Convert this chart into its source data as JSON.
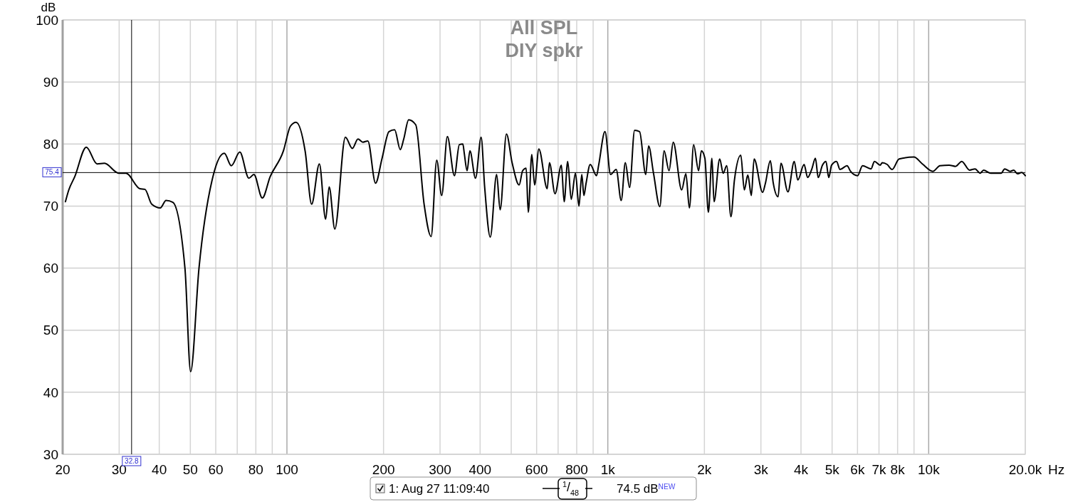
{
  "chart_data": {
    "type": "line",
    "title": "All SPL",
    "subtitle": "DIY spkr",
    "ylabel": "dB",
    "xlabel": "Hz",
    "log": "x",
    "grid": true,
    "legend": "bottom",
    "marker": "none",
    "line_style": "solid",
    "xlim": [
      20,
      20000
    ],
    "ylim": [
      30,
      100
    ],
    "xticks": [
      20,
      30,
      40,
      50,
      60,
      {
        "value": 70,
        "label": null
      },
      80,
      {
        "value": 90,
        "label": null
      },
      100,
      200,
      300,
      400,
      {
        "value": 500,
        "label": null
      },
      600,
      {
        "value": 700,
        "label": null
      },
      800,
      {
        "value": 900,
        "label": null
      },
      {
        "value": 1000,
        "label": "1k"
      },
      {
        "value": 2000,
        "label": "2k"
      },
      {
        "value": 3000,
        "label": "3k"
      },
      {
        "value": 4000,
        "label": "4k"
      },
      {
        "value": 5000,
        "label": "5k"
      },
      {
        "value": 6000,
        "label": "6k"
      },
      {
        "value": 7000,
        "label": "7k"
      },
      {
        "value": 8000,
        "label": "8k"
      },
      {
        "value": 9000,
        "label": null
      },
      {
        "value": 10000,
        "label": "10k"
      },
      {
        "value": 20000,
        "label": "20.0k"
      }
    ],
    "yticks": [
      30,
      40,
      50,
      60,
      70,
      80,
      90,
      100
    ],
    "ref_lines": [
      {
        "axis": "x",
        "value": 32.8,
        "label": "32.8",
        "color": "#000000"
      },
      {
        "axis": "y",
        "value": 75.4,
        "label": "75.4",
        "color": "#000000"
      }
    ],
    "annotations": [
      "$^{1}$/$_{48}$",
      "74.5 dB$^{NEW}$"
    ],
    "series": [
      {
        "name": "1: Aug 27 11:09:40",
        "color": "#000000",
        "x": [
          20.4,
          20.9,
          21.8,
          23.7,
          25.6,
          27.0,
          29.9,
          31.5,
          34.8,
          36.1,
          37.9,
          40.3,
          42.0,
          44.1,
          48.1,
          50.1,
          53.2,
          58.9,
          63.8,
          67.1,
          71.3,
          76.1,
          78.9,
          83.8,
          88.6,
          97.5,
          102.6,
          106.8,
          114.0,
          119.4,
          126.2,
          132.0,
          135.4,
          141.0,
          152.1,
          159.9,
          166.5,
          172.5,
          178.7,
          188.9,
          197.7,
          208.0,
          216.6,
          225.5,
          231.2,
          239.5,
          252.0,
          267.6,
          281.4,
          293.0,
          303.6,
          316.2,
          332.6,
          344.6,
          353.4,
          357.0,
          364.3,
          371.7,
          387.0,
          402.9,
          413.2,
          430.3,
          450.3,
          461.8,
          483.2,
          503.2,
          529.2,
          542.7,
          556.6,
          565.1,
          579.6,
          591.4,
          609.6,
          647.6,
          657.7,
          684.7,
          716.6,
          731.1,
          749.9,
          769.1,
          792.7,
          813.0,
          829.6,
          842.2,
          855.1,
          881.5,
          922.4,
          936.5,
          980,
          1020,
          1062,
          1101,
          1134,
          1169,
          1212,
          1256,
          1313,
          1340,
          1388,
          1453,
          1498,
          1552,
          1599,
          1699,
          1751,
          1796,
          1851,
          1918,
          1957,
          2007,
          2058,
          2111,
          2143,
          2232,
          2289,
          2347,
          2419,
          2481,
          2597,
          2663,
          2731,
          2801,
          2857,
          3037,
          3099,
          3210,
          3276,
          3394,
          3463,
          3642,
          3811,
          3909,
          4090,
          4195,
          4325,
          4436,
          4526,
          4665,
          4784,
          4882,
          4982,
          5161,
          5293,
          5567,
          5709,
          6004,
          6220,
          6610,
          6778,
          7058,
          7166,
          7425,
          7691,
          8089,
          8994,
          9557,
          10310,
          10840,
          11580,
          12120,
          12680,
          13410,
          13950,
          14460,
          14830,
          15600,
          16820,
          17250,
          17960,
          18420,
          18890,
          19480,
          20000
        ],
        "values": [
          70.7,
          72.6,
          74.7,
          79.5,
          76.8,
          76.9,
          75.3,
          75.3,
          72.8,
          72.7,
          70.3,
          69.7,
          70.9,
          70.6,
          60.0,
          43.3,
          60.0,
          74.9,
          78.5,
          76.5,
          78.7,
          74.5,
          75.1,
          71.3,
          74.7,
          78.9,
          82.9,
          83.5,
          78.8,
          70.3,
          76.8,
          67.9,
          73.1,
          66.3,
          81.1,
          79.3,
          80.8,
          80.3,
          80.5,
          73.7,
          77.6,
          82.0,
          82.3,
          79.1,
          80.8,
          83.9,
          83.1,
          70.3,
          65.1,
          77.4,
          71.7,
          81.2,
          74.9,
          79.9,
          80.0,
          78.5,
          75.7,
          78.9,
          74.5,
          81.1,
          73.1,
          65.0,
          75.1,
          69.4,
          81.6,
          77.0,
          73.4,
          75.7,
          76.1,
          69.0,
          78.3,
          73.4,
          79.2,
          72.8,
          77.0,
          72.0,
          76.6,
          70.7,
          77.2,
          71.1,
          75.3,
          70.0,
          75.1,
          71.7,
          73.6,
          76.7,
          74.9,
          76.6,
          82.0,
          75.1,
          75.9,
          70.9,
          77.0,
          73.0,
          82.2,
          82.0,
          75.1,
          79.7,
          75.3,
          69.9,
          78.9,
          75.7,
          80.3,
          72.6,
          75.2,
          69.7,
          79.9,
          75.7,
          78.9,
          77.7,
          69.0,
          77.7,
          70.7,
          77.6,
          75.3,
          76.5,
          68.3,
          74.2,
          78.2,
          72.6,
          75.0,
          71.7,
          77.6,
          72.2,
          73.7,
          77.3,
          73.8,
          71.5,
          76.9,
          72.3,
          77.2,
          74.2,
          76.7,
          74.6,
          76.0,
          77.7,
          74.6,
          76.6,
          77.2,
          74.6,
          76.6,
          77.2,
          75.9,
          76.5,
          75.6,
          74.9,
          76.5,
          76.0,
          77.2,
          76.6,
          77.0,
          76.7,
          75.9,
          77.6,
          77.9,
          76.8,
          75.6,
          76.5,
          76.6,
          76.4,
          77.2,
          75.8,
          76.0,
          75.3,
          75.8,
          75.3,
          75.3,
          76.0,
          75.6,
          75.8,
          75.2,
          75.4,
          74.9
        ]
      }
    ]
  }
}
